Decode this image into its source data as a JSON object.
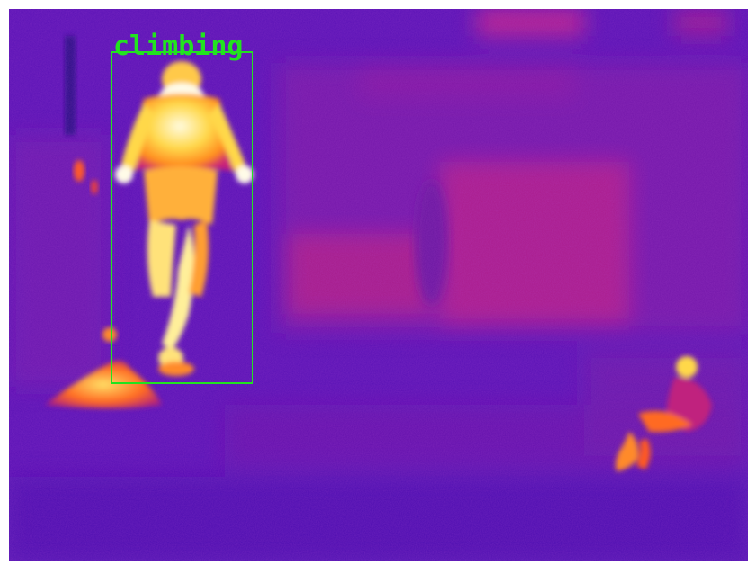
{
  "image": {
    "kind": "thermal-camera-frame",
    "palette": "inferno",
    "colors": {
      "background": "#5a10b8",
      "warm": "#b01890",
      "hot": "#ff7a1a",
      "hottest": "#fff6c8"
    }
  },
  "detections": [
    {
      "label": "climbing",
      "color": "#22e31f"
    }
  ]
}
